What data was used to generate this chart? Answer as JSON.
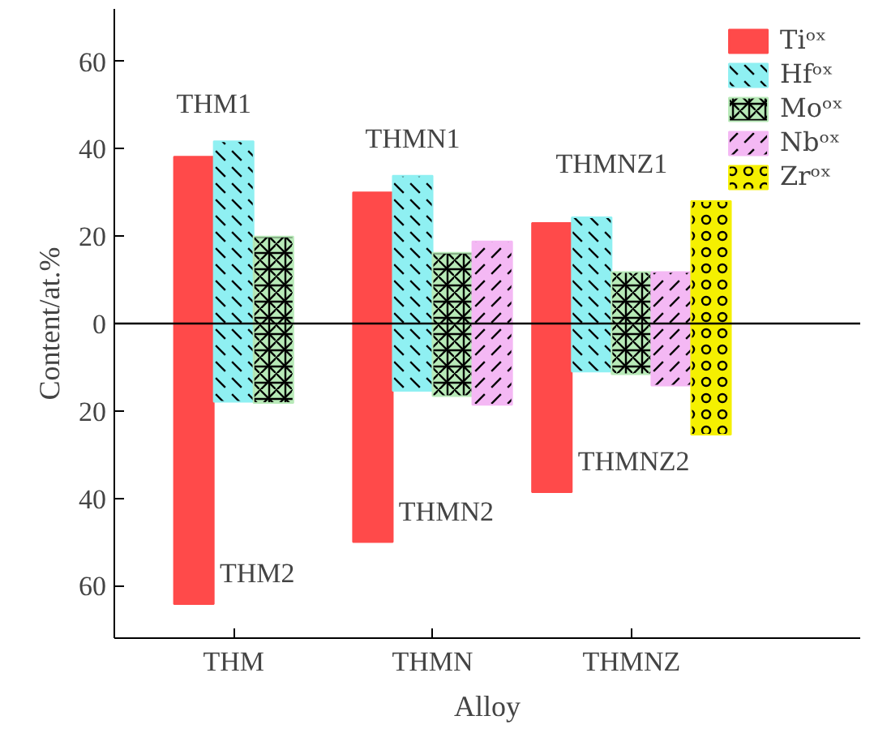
{
  "chart_data": {
    "type": "bar",
    "xlabel": "Alloy",
    "ylabel": "Content/at.%",
    "categories": [
      "THM",
      "THMN",
      "THMNZ"
    ],
    "series": [
      {
        "name": "Tiᵒˣ",
        "color": "#ff4a4a",
        "base": [
          -64.2,
          -50,
          -38.6
        ],
        "values": [
          102.4,
          80,
          61.6
        ]
      },
      {
        "name": "Hfᵒˣ",
        "color": "#8ff0f2",
        "base": [
          -17.9,
          -15.4,
          -11
        ],
        "values": [
          59.6,
          49.2,
          35.3
        ]
      },
      {
        "name": "Moᵒˣ",
        "color": "#b8eab8",
        "base": [
          -18.2,
          -16.6,
          -11.6
        ],
        "values": [
          38.1,
          32.8,
          23.4
        ]
      },
      {
        "name": "Nbᵒˣ",
        "color": "#f4b8f4",
        "base": [
          null,
          -18.6,
          -14.2
        ],
        "values": [
          null,
          37.4,
          26
        ]
      },
      {
        "name": "Zrᵒˣ",
        "color": "#f5f000",
        "base": [
          null,
          null,
          -25.4
        ],
        "values": [
          null,
          null,
          53.4
        ]
      }
    ],
    "ylim": [
      -72,
      72
    ],
    "yticks": [
      {
        "value": -60,
        "label": "60"
      },
      {
        "value": -40,
        "label": "40"
      },
      {
        "value": -20,
        "label": "20"
      },
      0,
      20,
      40,
      60
    ],
    "ref_lines": [
      {
        "axis": "y",
        "value": 0,
        "color": "#000000"
      }
    ],
    "annotations": [
      "THM1",
      "THM2",
      "THMN1",
      "THMN2",
      "THMNZ1",
      "THMNZ2"
    ],
    "legend": "top right",
    "grid": false
  }
}
